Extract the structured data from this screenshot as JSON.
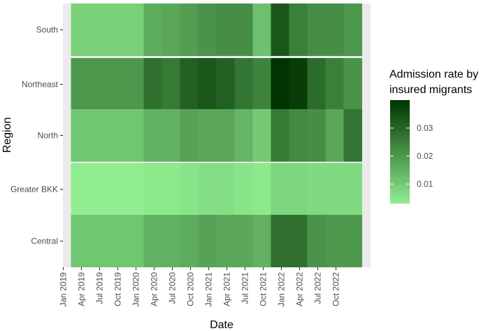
{
  "chart_data": {
    "type": "heatmap",
    "title": "",
    "xlabel": "Date",
    "ylabel": "Region",
    "x_tick_labels": [
      "Jan 2019",
      "Apr 2019",
      "Jul 2019",
      "Oct 2019",
      "Jan 2020",
      "Apr 2020",
      "Jul 2020",
      "Oct 2020",
      "Jan 2021",
      "Apr 2021",
      "Jul 2021",
      "Oct 2021",
      "Jan 2022",
      "Apr 2022",
      "Jul 2022",
      "Oct 2022"
    ],
    "x_periods": [
      "Jan 2019",
      "Apr 2019",
      "Jul 2019",
      "Oct 2019",
      "Jan 2020",
      "Apr 2020",
      "Jul 2020",
      "Oct 2020",
      "Jan 2021",
      "Apr 2021",
      "Jul 2021",
      "Oct 2021",
      "Jan 2022",
      "Apr 2022",
      "Jul 2022",
      "Oct 2022"
    ],
    "regions": [
      "South",
      "Northeast",
      "North",
      "Greater BKK",
      "Central"
    ],
    "values": [
      [
        0.009,
        0.009,
        0.009,
        0.009,
        0.016,
        0.017,
        0.019,
        0.021,
        0.022,
        0.022,
        0.012,
        0.033,
        0.025,
        0.022,
        0.022,
        0.02
      ],
      [
        0.02,
        0.02,
        0.02,
        0.02,
        0.028,
        0.026,
        0.031,
        0.033,
        0.031,
        0.027,
        0.024,
        0.04,
        0.038,
        0.029,
        0.025,
        0.021
      ],
      [
        0.011,
        0.011,
        0.011,
        0.011,
        0.015,
        0.015,
        0.018,
        0.017,
        0.017,
        0.014,
        0.01,
        0.026,
        0.023,
        0.022,
        0.017,
        0.027
      ],
      [
        0.003,
        0.003,
        0.003,
        0.003,
        0.004,
        0.004,
        0.005,
        0.006,
        0.006,
        0.005,
        0.004,
        0.008,
        0.008,
        0.007,
        0.007,
        0.007
      ],
      [
        0.011,
        0.011,
        0.011,
        0.011,
        0.015,
        0.015,
        0.016,
        0.018,
        0.017,
        0.017,
        0.015,
        0.028,
        0.028,
        0.021,
        0.02,
        0.02
      ]
    ],
    "color_scale": {
      "low": "#90EE90",
      "high": "#003300",
      "min": 0.003,
      "max": 0.04
    },
    "legend": {
      "title_lines": [
        "Admission rate by",
        "insured migrants"
      ],
      "ticks": [
        0.01,
        0.02,
        0.03
      ],
      "tick_labels": [
        "0.01",
        "0.02",
        "0.03"
      ],
      "position": "right"
    },
    "background": "#EBEBEB"
  }
}
